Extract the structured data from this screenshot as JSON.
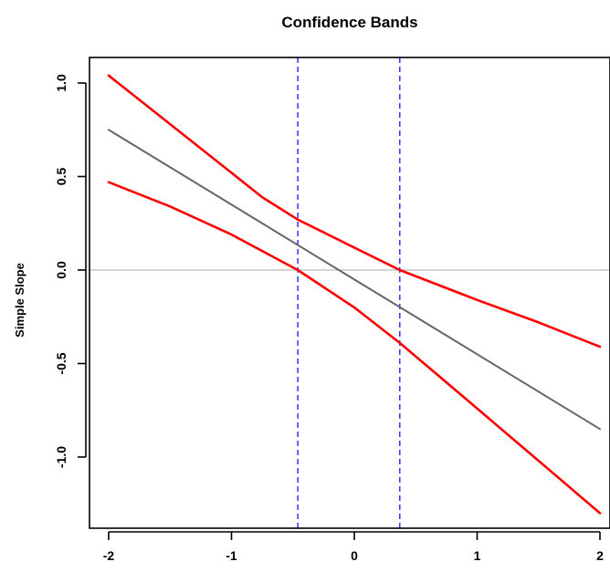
{
  "chart_data": {
    "type": "line",
    "title": "Confidence Bands",
    "xlabel": "",
    "ylabel": "Simple Slope",
    "xlim": [
      -2,
      2
    ],
    "ylim": [
      -1.4,
      1.1
    ],
    "x_ticks": [
      -2,
      -1,
      0,
      1,
      2
    ],
    "x_tick_labels": [
      "-2",
      "-1",
      "0",
      "1",
      "2"
    ],
    "y_ticks": [
      -1.0,
      -0.5,
      0.0,
      0.5,
      1.0
    ],
    "y_tick_labels": [
      "-1.0",
      "-0.5",
      "0.0",
      "0.5",
      "1.0"
    ],
    "grid": false,
    "legend": "none",
    "series": [
      {
        "color": "#666666",
        "style": "solid",
        "x": [
          -2,
          2
        ],
        "y": [
          0.75,
          -0.85
        ]
      },
      {
        "color": "#ff0000",
        "style": "solid",
        "x": [
          -2,
          -1.5,
          -1,
          -0.75,
          -0.46,
          0,
          0.37,
          1,
          1.5,
          2
        ],
        "y": [
          1.04,
          0.78,
          0.52,
          0.39,
          0.27,
          0.12,
          0.0,
          -0.16,
          -0.28,
          -0.41
        ]
      },
      {
        "color": "#ff0000",
        "style": "solid",
        "x": [
          -2,
          -1.5,
          -1,
          -0.46,
          0,
          0.37,
          1,
          1.5,
          2
        ],
        "y": [
          0.47,
          0.34,
          0.19,
          0.0,
          -0.2,
          -0.39,
          -0.74,
          -1.02,
          -1.3
        ]
      }
    ],
    "reference_lines": [
      {
        "orientation": "horizontal",
        "value": 0.0,
        "color": "#bbbbbb",
        "style": "solid"
      },
      {
        "orientation": "vertical",
        "value": -0.46,
        "color": "#3333ff",
        "style": "dashed"
      },
      {
        "orientation": "vertical",
        "value": 0.37,
        "color": "#3333ff",
        "style": "dashed"
      }
    ]
  }
}
